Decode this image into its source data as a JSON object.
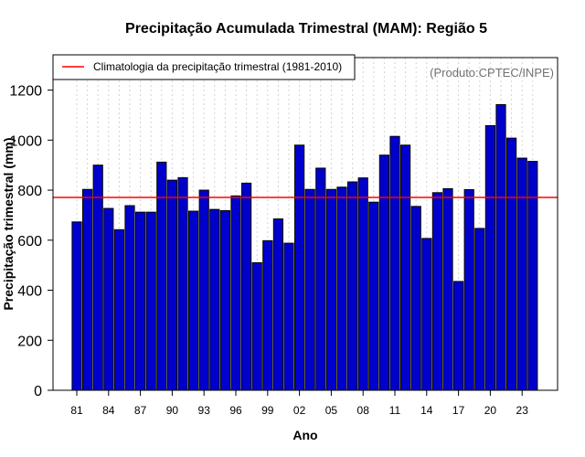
{
  "chart_data": {
    "type": "bar",
    "title": "Precipitação Acumulada Trimestral (MAM): Região 5",
    "xlabel": "Ano",
    "ylabel": "Precipitação trimestral (mm)",
    "credit": "(Produto:CPTEC/INPE)",
    "legend": {
      "label": "Climatologia da precipitação trimestral (1981-2010)",
      "color": "#ff0000",
      "position": "top-left"
    },
    "climatology": 771,
    "ylim": [
      0,
      1330
    ],
    "yticks": [
      0,
      200,
      400,
      600,
      800,
      1000,
      1200
    ],
    "ytick_labels": [
      "0",
      "200",
      "400",
      "600",
      "800",
      "1000",
      "1200"
    ],
    "years": [
      1981,
      1982,
      1983,
      1984,
      1985,
      1986,
      1987,
      1988,
      1989,
      1990,
      1991,
      1992,
      1993,
      1994,
      1995,
      1996,
      1997,
      1998,
      1999,
      2000,
      2001,
      2002,
      2003,
      2004,
      2005,
      2006,
      2007,
      2008,
      2009,
      2010,
      2011,
      2012,
      2013,
      2014,
      2015,
      2016,
      2017,
      2018,
      2019,
      2020,
      2021,
      2022,
      2023,
      2024
    ],
    "values": [
      673,
      803,
      900,
      727,
      642,
      738,
      712,
      712,
      912,
      840,
      850,
      716,
      800,
      723,
      718,
      777,
      828,
      510,
      598,
      685,
      588,
      980,
      803,
      888,
      803,
      812,
      833,
      849,
      752,
      940,
      1015,
      980,
      735,
      607,
      790,
      806,
      435,
      802,
      647,
      1058,
      1142,
      1008,
      928,
      915
    ],
    "xtick_indices": [
      0,
      3,
      6,
      9,
      12,
      15,
      18,
      21,
      24,
      27,
      30,
      33,
      36,
      39,
      42
    ],
    "xtick_labels": [
      "81",
      "84",
      "87",
      "90",
      "93",
      "96",
      "99",
      "02",
      "05",
      "08",
      "11",
      "14",
      "17",
      "20",
      "23"
    ],
    "colors": {
      "bar_fill": "#0000cd",
      "bar_stroke": "#000000",
      "line": "#ff0000",
      "grid": "#d3d3d3"
    },
    "grid": true
  }
}
